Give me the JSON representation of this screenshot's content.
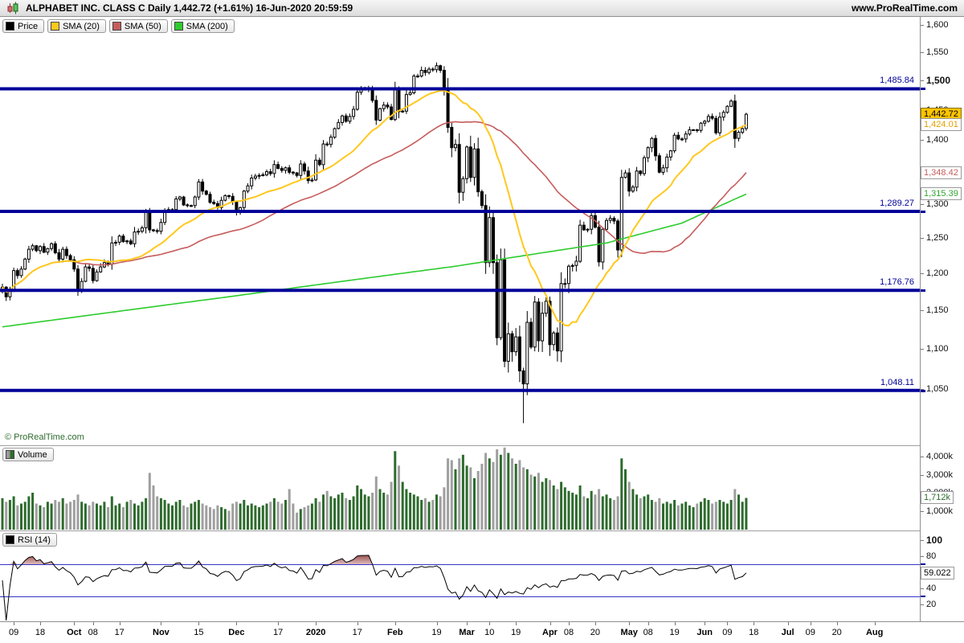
{
  "header": {
    "title": "ALPHABET INC. CLASS C Daily 1,442.72 (+1.61%) 16-Jun-2020 20:59:59",
    "website": "www.ProRealTime.com"
  },
  "legend": {
    "price": "Price",
    "sma20": "SMA (20)",
    "sma50": "SMA (50)",
    "sma200": "SMA (200)",
    "volume": "Volume",
    "rsi": "RSI (14)"
  },
  "copyright": "© ProRealTime.com",
  "colors": {
    "up_candle": "#ffffff",
    "down_candle": "#000000",
    "candle_outline": "#000000",
    "sma20": "#FFC81E",
    "sma50": "#C75C5C",
    "sma200": "#2ECC2E",
    "support": "#000099",
    "volume_up": "#2D6B2D",
    "volume_down": "#9f9f9f",
    "rsi_line": "#000000",
    "rsi_level": "#3434C8",
    "overbought_dark": "#8a3535",
    "overbought_light": "#d9b0b0"
  },
  "scale_boxes": {
    "last": "1,442.72",
    "sma20": "1,424.01",
    "sma50": "1,348.42",
    "sma200": "1,315.39",
    "volume": "1,712k",
    "rsi": "59.022"
  },
  "chart_data": {
    "type": "candlestick",
    "symbol": "ALPHABET INC. CLASS C",
    "timeframe": "Daily",
    "last_price": 1442.72,
    "change_pct": "+1.61%",
    "timestamp": "16-Jun-2020 20:59:59",
    "log_scale": true,
    "ylim": [
      985,
      1614
    ],
    "price_ticks": [
      {
        "t": "1,600",
        "v": 1600
      },
      {
        "t": "1,550",
        "v": 1550
      },
      {
        "t": "1,500",
        "v": 1500,
        "b": 1
      },
      {
        "t": "1,450",
        "v": 1450
      },
      {
        "t": "1,400",
        "v": 1400
      },
      {
        "t": "1,350",
        "v": 1350
      },
      {
        "t": "1,300",
        "v": 1300
      },
      {
        "t": "1,250",
        "v": 1250
      },
      {
        "t": "1,200",
        "v": 1200
      },
      {
        "t": "1,150",
        "v": 1150
      },
      {
        "t": "1,100",
        "v": 1100
      },
      {
        "t": "1,050",
        "v": 1050
      }
    ],
    "volume_ticks": [
      {
        "t": "4,000k",
        "v": 4000
      },
      {
        "t": "3,000k",
        "v": 3000
      },
      {
        "t": "2,000k",
        "v": 2000
      },
      {
        "t": "1,000k",
        "v": 1000
      }
    ],
    "rsi_ticks": [
      {
        "t": "100",
        "v": 100,
        "b": 1
      },
      {
        "t": "80",
        "v": 80
      },
      {
        "t": "60",
        "v": 60
      },
      {
        "t": "40",
        "v": 40
      },
      {
        "t": "20",
        "v": 20
      }
    ],
    "rsi_levels": [
      70,
      30
    ],
    "support_levels": [
      {
        "label": "1,485.84",
        "value": 1485.84
      },
      {
        "label": "1,289.27",
        "value": 1289.27
      },
      {
        "label": "1,176.76",
        "value": 1176.76
      },
      {
        "label": "1,048.11",
        "value": 1048.11
      }
    ],
    "x_labels": [
      {
        "t": "09",
        "i": 3
      },
      {
        "t": "18",
        "i": 10
      },
      {
        "t": "Oct",
        "i": 19,
        "b": 1
      },
      {
        "t": "08",
        "i": 24
      },
      {
        "t": "17",
        "i": 31
      },
      {
        "t": "Nov",
        "i": 42,
        "b": 1
      },
      {
        "t": "15",
        "i": 52
      },
      {
        "t": "Dec",
        "i": 62,
        "b": 1
      },
      {
        "t": "17",
        "i": 73
      },
      {
        "t": "2020",
        "i": 83,
        "b": 1
      },
      {
        "t": "17",
        "i": 94
      },
      {
        "t": "Feb",
        "i": 104,
        "b": 1
      },
      {
        "t": "19",
        "i": 115
      },
      {
        "t": "Mar",
        "i": 123,
        "b": 1
      },
      {
        "t": "10",
        "i": 129
      },
      {
        "t": "19",
        "i": 136
      },
      {
        "t": "Apr",
        "i": 145,
        "b": 1
      },
      {
        "t": "08",
        "i": 150
      },
      {
        "t": "20",
        "i": 157
      },
      {
        "t": "May",
        "i": 166,
        "b": 1
      },
      {
        "t": "08",
        "i": 171
      },
      {
        "t": "19",
        "i": 178
      },
      {
        "t": "Jun",
        "i": 186,
        "b": 1
      },
      {
        "t": "09",
        "i": 192
      },
      {
        "t": "18",
        "i": 199
      },
      {
        "t": "Jul",
        "i": 208,
        "b": 1
      },
      {
        "t": "09",
        "i": 214
      },
      {
        "t": "20",
        "i": 221
      },
      {
        "t": "Aug",
        "i": 231,
        "b": 1
      }
    ],
    "first_open": 1175,
    "closes": [
      1181,
      1168,
      1178,
      1204,
      1197,
      1206,
      1220,
      1234,
      1239,
      1232,
      1238,
      1230,
      1235,
      1242,
      1229,
      1220,
      1234,
      1225,
      1219,
      1206,
      1177,
      1189,
      1209,
      1207,
      1190,
      1202,
      1209,
      1215,
      1213,
      1243,
      1244,
      1253,
      1245,
      1246,
      1242,
      1259,
      1260,
      1265,
      1290,
      1262,
      1261,
      1260,
      1273,
      1291,
      1292,
      1292,
      1308,
      1311,
      1299,
      1298,
      1298,
      1311,
      1334,
      1320,
      1315,
      1303,
      1301,
      1295,
      1306,
      1313,
      1312,
      1304,
      1289,
      1295,
      1320,
      1328,
      1340,
      1343,
      1344,
      1345,
      1350,
      1347,
      1361,
      1355,
      1352,
      1356,
      1349,
      1348,
      1344,
      1362,
      1351,
      1336,
      1337,
      1368,
      1361,
      1394,
      1393,
      1405,
      1419,
      1429,
      1440,
      1431,
      1439,
      1451,
      1480,
      1485,
      1485,
      1486,
      1466,
      1433,
      1452,
      1458,
      1455,
      1434,
      1485,
      1447,
      1448,
      1476,
      1479,
      1508,
      1508,
      1518,
      1514,
      1520,
      1519,
      1526,
      1518,
      1485,
      1421,
      1388,
      1393,
      1318,
      1339,
      1389,
      1341,
      1386,
      1319,
      1298,
      1215,
      1280,
      1215,
      1114,
      1219,
      1084,
      1119,
      1096,
      1115,
      1072,
      1056,
      1134,
      1102,
      1161,
      1110,
      1146,
      1162,
      1105,
      1120,
      1097,
      1186,
      1186,
      1210,
      1211,
      1217,
      1269,
      1262,
      1263,
      1283,
      1266,
      1216,
      1263,
      1276,
      1279,
      1275,
      1233,
      1341,
      1348,
      1320,
      1326,
      1351,
      1347,
      1372,
      1388,
      1403,
      1375,
      1349,
      1356,
      1373,
      1383,
      1408,
      1402,
      1402,
      1410,
      1417,
      1417,
      1416,
      1428,
      1431,
      1439,
      1436,
      1412,
      1438,
      1446,
      1456,
      1465,
      1403,
      1413,
      1419,
      1442.72
    ],
    "volumes_k": [
      1700,
      1500,
      1600,
      1800,
      1300,
      1400,
      1500,
      1800,
      2000,
      1400,
      1300,
      1200,
      1500,
      1400,
      1600,
      1500,
      1700,
      1400,
      1500,
      1600,
      1900,
      1500,
      1400,
      1300,
      1500,
      1400,
      1300,
      1500,
      1200,
      1800,
      1300,
      1400,
      1200,
      1500,
      1600,
      1400,
      1300,
      1500,
      1700,
      3100,
      2400,
      1800,
      1700,
      1600,
      1400,
      1300,
      1500,
      1600,
      1300,
      1200,
      1400,
      1500,
      1600,
      1400,
      1300,
      1200,
      1100,
      1300,
      1200,
      1100,
      1000,
      1400,
      1500,
      1400,
      1600,
      1300,
      1400,
      1300,
      1200,
      1300,
      1400,
      1500,
      1700,
      1500,
      1400,
      1600,
      2200,
      1400,
      900,
      1100,
      1200,
      1300,
      1400,
      1700,
      1500,
      1900,
      2100,
      1800,
      1700,
      1900,
      2000,
      1700,
      1600,
      1800,
      2400,
      2200,
      1900,
      1800,
      2000,
      2900,
      2200,
      2000,
      1900,
      2600,
      4300,
      3500,
      2600,
      2200,
      2000,
      1900,
      1800,
      1600,
      1700,
      1500,
      1600,
      1900,
      1800,
      2300,
      3900,
      3800,
      3300,
      3900,
      4100,
      3500,
      3400,
      2800,
      3200,
      3600,
      4200,
      3900,
      3700,
      4400,
      4100,
      4500,
      4200,
      3900,
      3600,
      3800,
      3400,
      3300,
      3000,
      2900,
      3100,
      2600,
      2800,
      2700,
      2400,
      2200,
      2600,
      2300,
      2100,
      2000,
      1900,
      2400,
      1800,
      1700,
      2100,
      1900,
      2200,
      1800,
      1900,
      1700,
      1600,
      1800,
      3900,
      3300,
      2600,
      2200,
      1900,
      1700,
      1800,
      1900,
      1600,
      1500,
      1700,
      1400,
      1500,
      1400,
      1600,
      1300,
      1400,
      1500,
      1300,
      1200,
      1400,
      1500,
      1700,
      1600,
      1400,
      1500,
      1600,
      1500,
      1400,
      1600,
      2200,
      1900,
      1500,
      1712
    ],
    "sma200_waypoints": [
      [
        0,
        1128
      ],
      [
        60,
        1168
      ],
      [
        120,
        1210
      ],
      [
        160,
        1243
      ],
      [
        180,
        1272
      ],
      [
        197,
        1315.39
      ]
    ],
    "wick_overrides": {
      "115": {
        "high": 1532
      },
      "138": {
        "low": 1009
      },
      "193": {
        "high": 1468
      }
    },
    "indicator_last_values": {
      "sma20": 1424.01,
      "sma50": 1348.42,
      "sma200": 1315.39,
      "volume_k": 1712,
      "rsi": 59.022
    }
  }
}
